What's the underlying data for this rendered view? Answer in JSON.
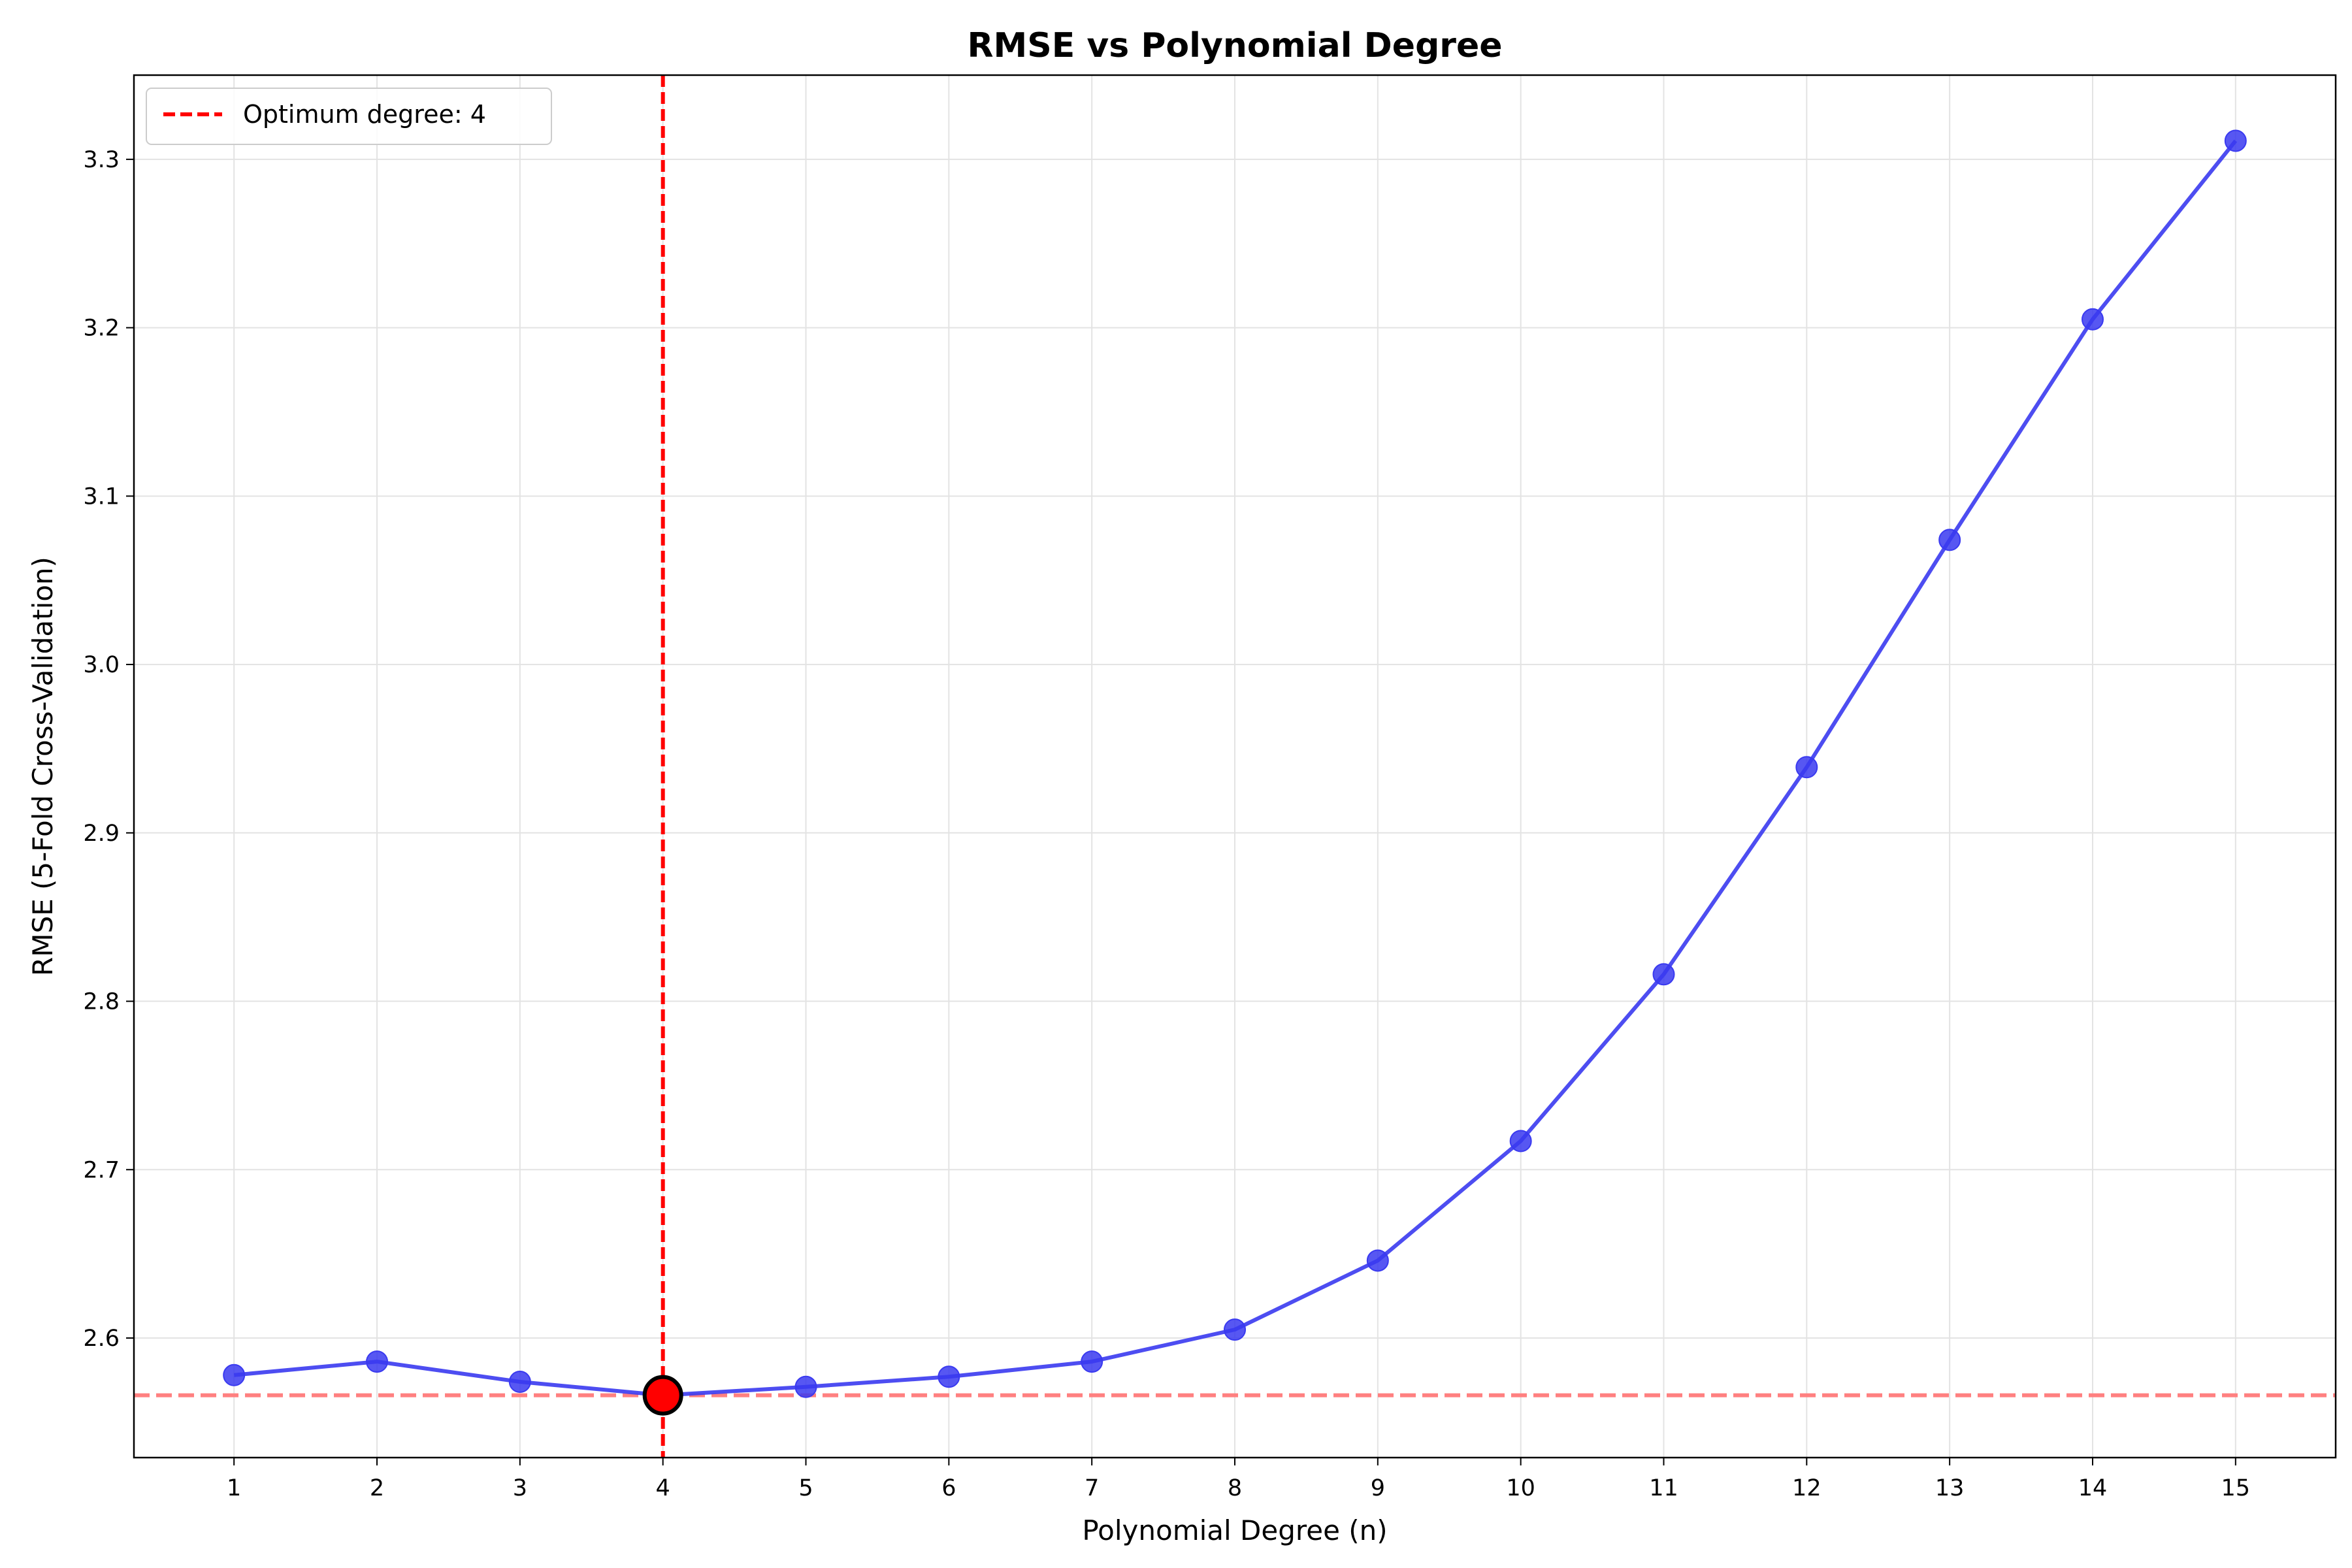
{
  "chart_data": {
    "type": "line",
    "title": "RMSE vs Polynomial Degree",
    "xlabel": "Polynomial Degree (n)",
    "ylabel": "RMSE (5-Fold Cross-Validation)",
    "x": [
      1,
      2,
      3,
      4,
      5,
      6,
      7,
      8,
      9,
      10,
      11,
      12,
      13,
      14,
      15
    ],
    "series": [
      {
        "name": "",
        "color": "#3a3af0",
        "values": [
          2.578,
          2.586,
          2.574,
          2.566,
          2.571,
          2.577,
          2.586,
          2.605,
          2.646,
          2.717,
          2.816,
          2.939,
          3.074,
          3.205,
          3.311
        ]
      }
    ],
    "xlim": [
      0.3,
      15.7
    ],
    "ylim": [
      2.529,
      3.35
    ],
    "xticks": [
      1,
      2,
      3,
      4,
      5,
      6,
      7,
      8,
      9,
      10,
      11,
      12,
      13,
      14,
      15
    ],
    "xtick_labels": [
      "1",
      "2",
      "3",
      "4",
      "5",
      "6",
      "7",
      "8",
      "9",
      "10",
      "11",
      "12",
      "13",
      "14",
      "15"
    ],
    "yticks": [
      2.6,
      2.7,
      2.8,
      2.9,
      3.0,
      3.1,
      3.2,
      3.3
    ],
    "ytick_labels": [
      "2.6",
      "2.7",
      "2.8",
      "2.9",
      "3.0",
      "3.1",
      "3.2",
      "3.3"
    ],
    "grid": true,
    "optimum": {
      "x": 4,
      "y": 2.566,
      "color": "#ff0000"
    },
    "min_rmse_line": {
      "y": 2.566,
      "color": "#ff8080"
    },
    "legend": {
      "position": "top-left",
      "entries": [
        "Optimum degree: 4"
      ]
    }
  }
}
